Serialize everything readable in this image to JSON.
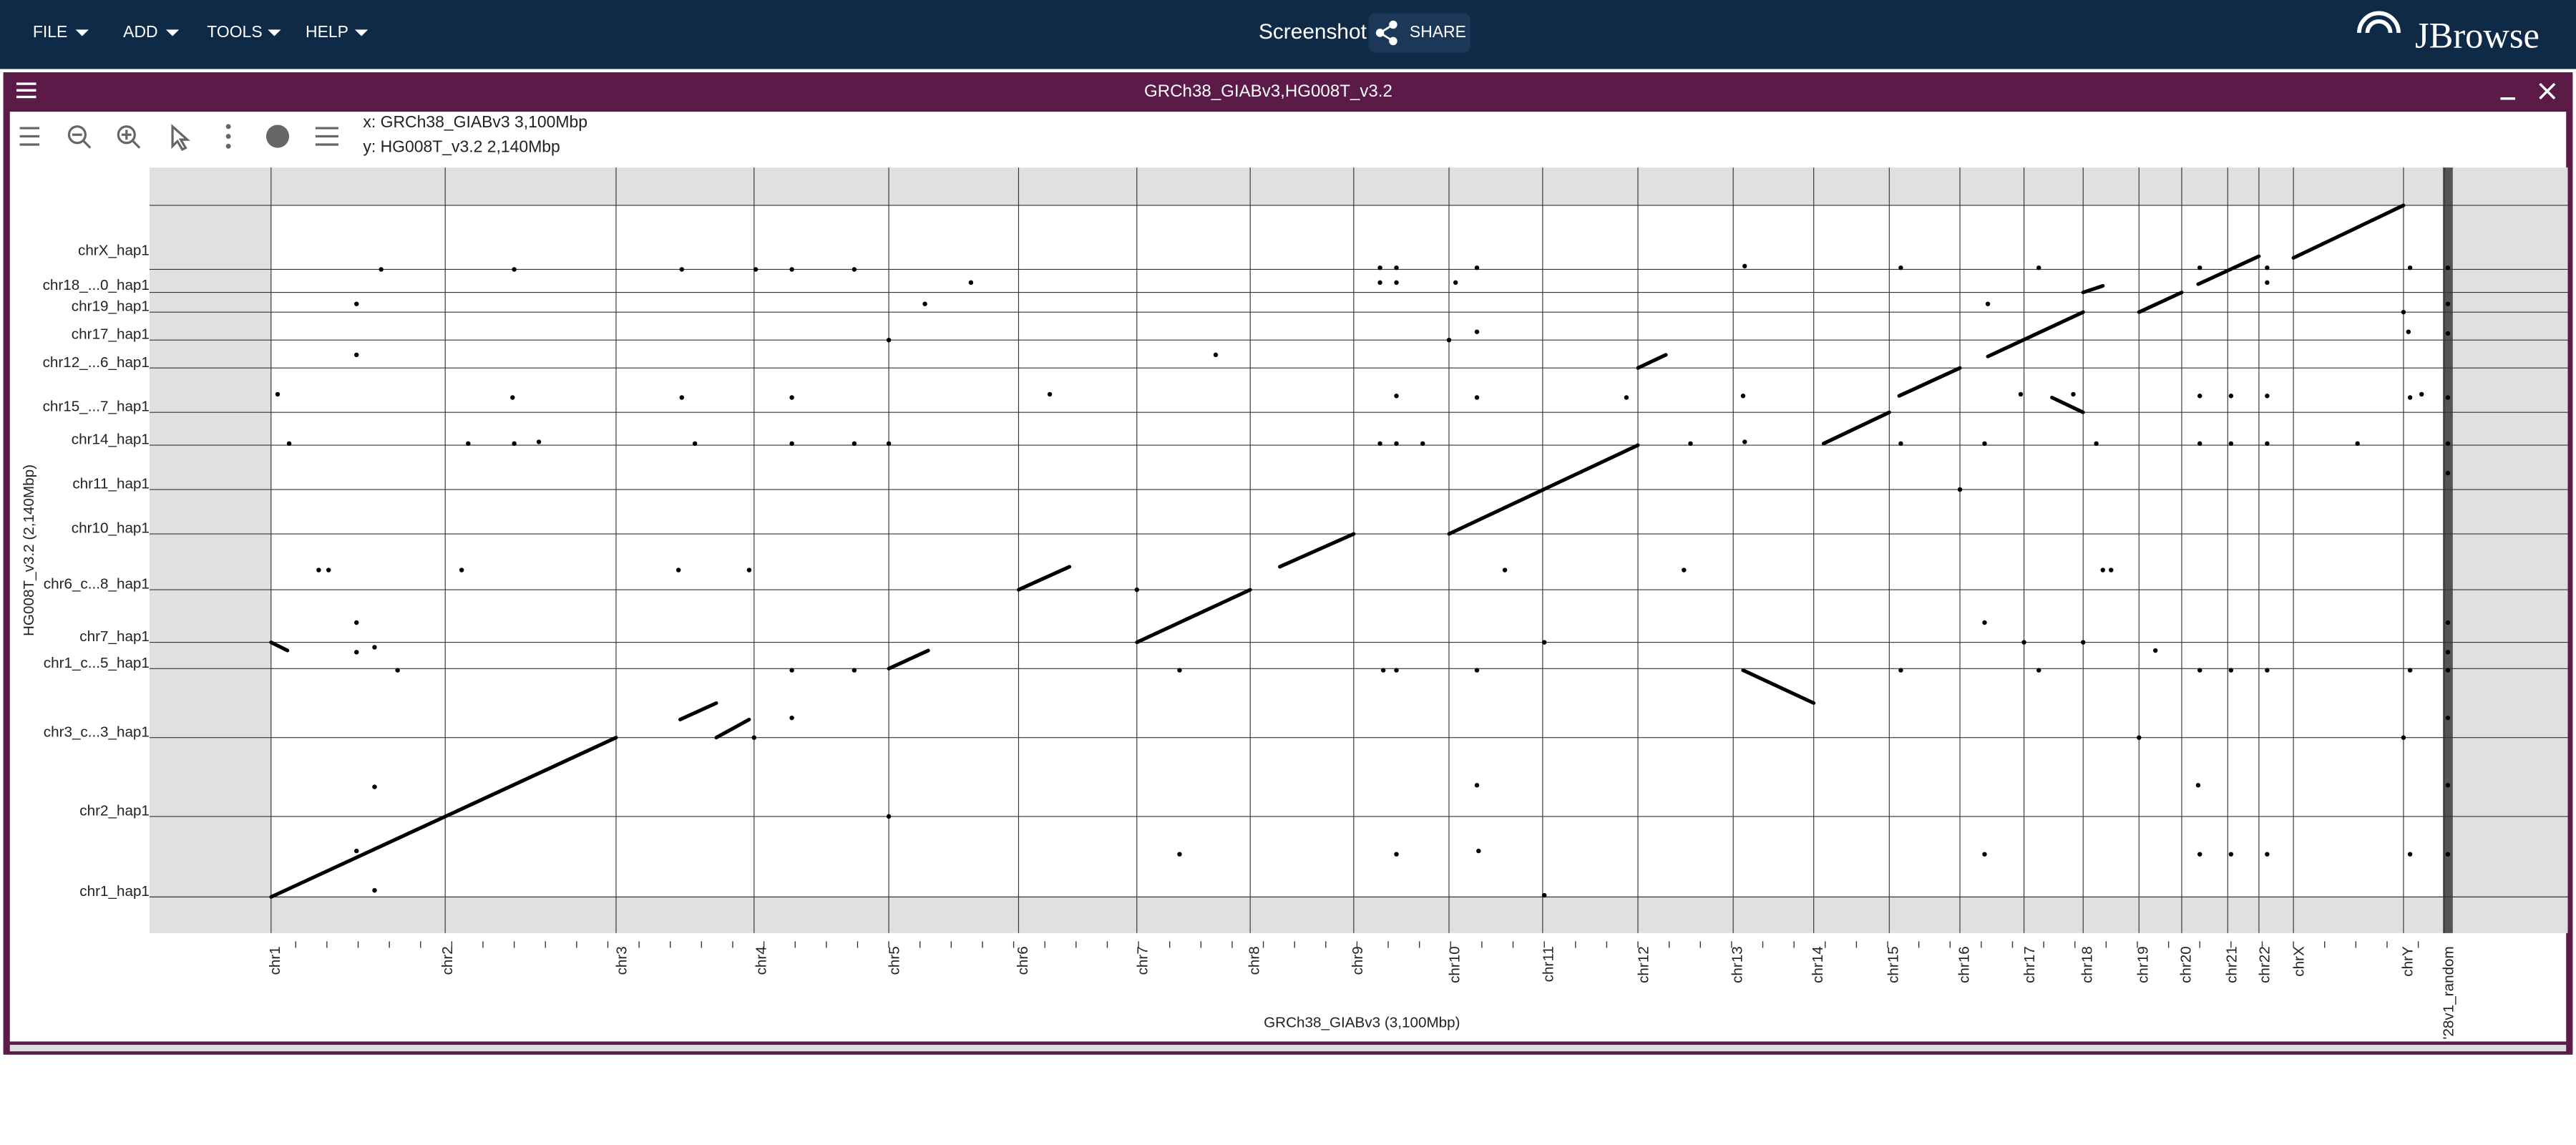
{
  "menu": {
    "items": [
      "FILE",
      "ADD",
      "TOOLS",
      "HELP"
    ],
    "session_name": "Screenshot",
    "share": "SHARE",
    "logo": "JBrowse"
  },
  "view": {
    "title": "GRCh38_GIABv3,HG008T_v3.2",
    "x_info": "x: GRCh38_GIABv3 3,100Mbp",
    "y_info": "y: HG008T_v3.2 2,140Mbp",
    "x_axis_title": "GRCh38_GIABv3 (3,100Mbp)",
    "y_axis_title": "HG008T_v3.2 (2,140Mbp)",
    "y_labels": [
      "chrX_hap1",
      "chr18_...0_hap1",
      "chr19_hap1",
      "chr17_hap1",
      "chr12_...6_hap1",
      "chr15_...7_hap1",
      "chr14_hap1",
      "chr11_hap1",
      "chr10_hap1",
      "chr6_c...8_hap1",
      "chr7_hap1",
      "chr1_c...5_hap1",
      "chr3_c...3_hap1",
      "chr2_hap1",
      "chr1_hap1"
    ],
    "x_labels": [
      "chr1",
      "chr2",
      "chr3",
      "chr4",
      "chr5",
      "chr6",
      "chr7",
      "chr8",
      "chr9",
      "chr10",
      "chr11",
      "chr12",
      "chr13",
      "chr14",
      "chr15",
      "chr16",
      "chr17",
      "chr18",
      "chr19",
      "chr20",
      "chr21",
      "chr22",
      "chrX",
      "chrY",
      "'28v1_random"
    ]
  }
}
